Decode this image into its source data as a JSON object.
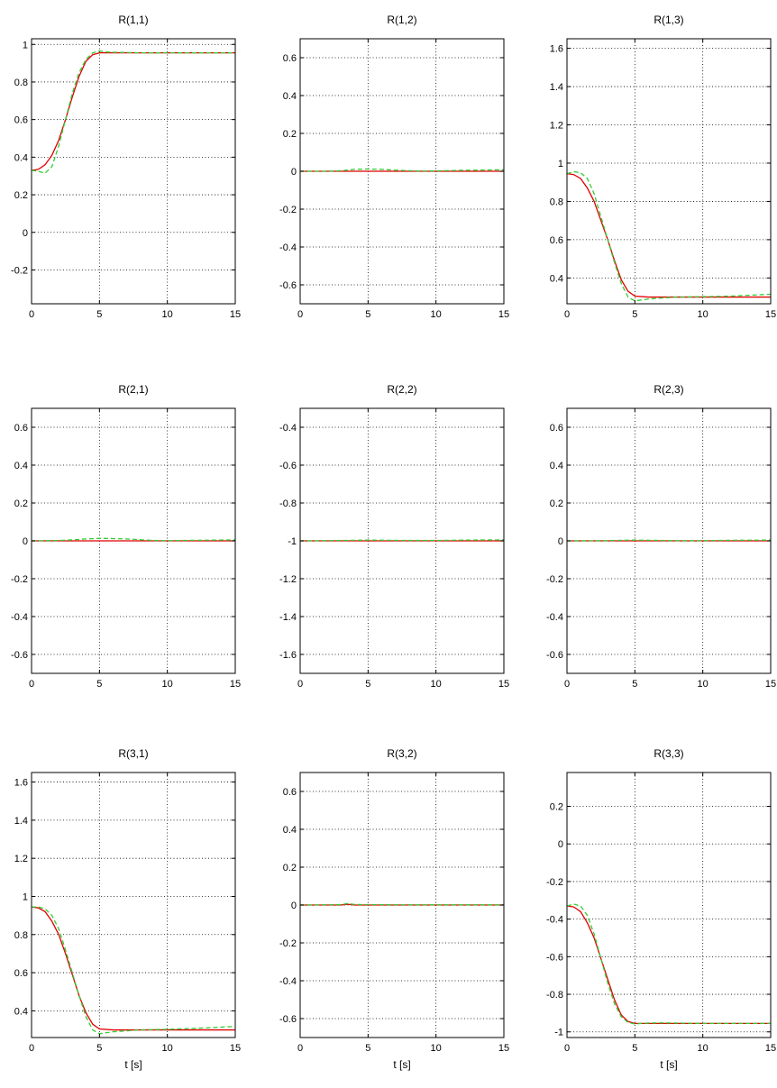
{
  "chart_data": [
    {
      "type": "line",
      "title": "R(1,1)",
      "xlabel": "",
      "xlim": [
        0,
        15
      ],
      "ylim": [
        -0.38,
        1.03
      ],
      "xticks": [
        0,
        5,
        10,
        15
      ],
      "xtick_labels": [
        "0",
        "5",
        "10",
        "15"
      ],
      "yticks": [
        -0.2,
        0,
        0.2,
        0.4,
        0.6,
        0.8,
        1
      ],
      "ytick_labels": [
        "-0.2",
        "0",
        "0.2",
        "0.4",
        "0.6",
        "0.8",
        "1"
      ],
      "grid": true,
      "series": [
        {
          "color": "#e00000",
          "style": "solid",
          "x": [
            0,
            0.5,
            1,
            1.5,
            2,
            2.5,
            3,
            3.5,
            4,
            4.5,
            5,
            6,
            8,
            10,
            15
          ],
          "y": [
            0.33,
            0.335,
            0.36,
            0.41,
            0.49,
            0.6,
            0.72,
            0.83,
            0.91,
            0.945,
            0.955,
            0.955,
            0.955,
            0.955,
            0.955
          ]
        },
        {
          "color": "#33cc33",
          "style": "dashed",
          "x": [
            0,
            0.5,
            1,
            1.5,
            2,
            2.5,
            3,
            3.5,
            4,
            4.5,
            5,
            5.5,
            6,
            7,
            8,
            10,
            12,
            15
          ],
          "y": [
            0.33,
            0.325,
            0.315,
            0.35,
            0.46,
            0.6,
            0.74,
            0.85,
            0.92,
            0.955,
            0.965,
            0.96,
            0.958,
            0.957,
            0.955,
            0.955,
            0.955,
            0.955
          ]
        }
      ]
    },
    {
      "type": "line",
      "title": "R(1,2)",
      "xlabel": "",
      "xlim": [
        0,
        15
      ],
      "ylim": [
        -0.7,
        0.7
      ],
      "xticks": [
        0,
        5,
        10,
        15
      ],
      "xtick_labels": [
        "0",
        "5",
        "10",
        "15"
      ],
      "yticks": [
        -0.6,
        -0.4,
        -0.2,
        0,
        0.2,
        0.4,
        0.6
      ],
      "ytick_labels": [
        "-0.6",
        "-0.4",
        "-0.2",
        "0",
        "0.2",
        "0.4",
        "0.6"
      ],
      "grid": true,
      "series": [
        {
          "color": "#e00000",
          "style": "solid",
          "x": [
            0,
            15
          ],
          "y": [
            0,
            0
          ]
        },
        {
          "color": "#33cc33",
          "style": "dashed",
          "x": [
            0,
            2,
            3,
            4,
            5,
            6,
            7,
            8,
            9,
            10,
            12,
            15
          ],
          "y": [
            0,
            0,
            0.003,
            0.01,
            0.012,
            0.01,
            0.006,
            0.003,
            0.001,
            0.002,
            0.005,
            0.008
          ]
        }
      ]
    },
    {
      "type": "line",
      "title": "R(1,3)",
      "xlabel": "",
      "xlim": [
        0,
        15
      ],
      "ylim": [
        0.265,
        1.65
      ],
      "xticks": [
        0,
        5,
        10,
        15
      ],
      "xtick_labels": [
        "0",
        "5",
        "10",
        "15"
      ],
      "yticks": [
        0.4,
        0.6,
        0.8,
        1,
        1.2,
        1.4,
        1.6
      ],
      "ytick_labels": [
        "0.4",
        "0.6",
        "0.8",
        "1",
        "1.2",
        "1.4",
        "1.6"
      ],
      "grid": true,
      "series": [
        {
          "color": "#e00000",
          "style": "solid",
          "x": [
            0,
            0.5,
            1,
            1.5,
            2,
            2.5,
            3,
            3.5,
            4,
            4.5,
            5,
            6,
            8,
            10,
            15
          ],
          "y": [
            0.945,
            0.94,
            0.92,
            0.87,
            0.8,
            0.7,
            0.6,
            0.49,
            0.39,
            0.33,
            0.305,
            0.3,
            0.3,
            0.3,
            0.3
          ]
        },
        {
          "color": "#33cc33",
          "style": "dashed",
          "x": [
            0,
            0.5,
            1,
            1.5,
            2,
            2.5,
            3,
            3.5,
            4,
            4.5,
            5,
            5.5,
            6,
            7,
            8,
            10,
            12,
            15
          ],
          "y": [
            0.945,
            0.955,
            0.95,
            0.92,
            0.84,
            0.72,
            0.6,
            0.48,
            0.37,
            0.3,
            0.28,
            0.285,
            0.29,
            0.295,
            0.3,
            0.302,
            0.305,
            0.315
          ]
        }
      ]
    },
    {
      "type": "line",
      "title": "R(2,1)",
      "xlabel": "",
      "xlim": [
        0,
        15
      ],
      "ylim": [
        -0.7,
        0.7
      ],
      "xticks": [
        0,
        5,
        10,
        15
      ],
      "xtick_labels": [
        "0",
        "5",
        "10",
        "15"
      ],
      "yticks": [
        -0.6,
        -0.4,
        -0.2,
        0,
        0.2,
        0.4,
        0.6
      ],
      "ytick_labels": [
        "-0.6",
        "-0.4",
        "-0.2",
        "0",
        "0.2",
        "0.4",
        "0.6"
      ],
      "grid": true,
      "series": [
        {
          "color": "#e00000",
          "style": "solid",
          "x": [
            0,
            15
          ],
          "y": [
            0,
            0
          ]
        },
        {
          "color": "#33cc33",
          "style": "dashed",
          "x": [
            0,
            2,
            3,
            4,
            5,
            6,
            7,
            8,
            9,
            10,
            12,
            15
          ],
          "y": [
            0,
            0.002,
            0.005,
            0.01,
            0.013,
            0.012,
            0.01,
            0.006,
            0.002,
            0.001,
            0.003,
            0.005
          ]
        }
      ]
    },
    {
      "type": "line",
      "title": "R(2,2)",
      "xlabel": "",
      "xlim": [
        0,
        15
      ],
      "ylim": [
        -1.7,
        -0.3
      ],
      "xticks": [
        0,
        5,
        10,
        15
      ],
      "xtick_labels": [
        "0",
        "5",
        "10",
        "15"
      ],
      "yticks": [
        -1.6,
        -1.4,
        -1.2,
        -1,
        -0.8,
        -0.6,
        -0.4
      ],
      "ytick_labels": [
        "-1.6",
        "-1.4",
        "-1.2",
        "-1",
        "-0.8",
        "-0.6",
        "-0.4"
      ],
      "grid": true,
      "series": [
        {
          "color": "#e00000",
          "style": "solid",
          "x": [
            0,
            15
          ],
          "y": [
            -1,
            -1
          ]
        },
        {
          "color": "#33cc33",
          "style": "dashed",
          "x": [
            0,
            3,
            5,
            8,
            10,
            12,
            15
          ],
          "y": [
            -1,
            -0.998,
            -0.996,
            -0.998,
            -0.998,
            -0.996,
            -0.995
          ]
        }
      ]
    },
    {
      "type": "line",
      "title": "R(2,3)",
      "xlabel": "",
      "xlim": [
        0,
        15
      ],
      "ylim": [
        -0.7,
        0.7
      ],
      "xticks": [
        0,
        5,
        10,
        15
      ],
      "xtick_labels": [
        "0",
        "5",
        "10",
        "15"
      ],
      "yticks": [
        -0.6,
        -0.4,
        -0.2,
        0,
        0.2,
        0.4,
        0.6
      ],
      "ytick_labels": [
        "-0.6",
        "-0.4",
        "-0.2",
        "0",
        "0.2",
        "0.4",
        "0.6"
      ],
      "grid": true,
      "series": [
        {
          "color": "#e00000",
          "style": "solid",
          "x": [
            0,
            15
          ],
          "y": [
            0,
            0
          ]
        },
        {
          "color": "#33cc33",
          "style": "dashed",
          "x": [
            0,
            3,
            4,
            5,
            6,
            7,
            8,
            10,
            12,
            15
          ],
          "y": [
            0,
            0.001,
            0.003,
            0.004,
            0.003,
            0.002,
            0.001,
            0.001,
            0.003,
            0.004
          ]
        }
      ]
    },
    {
      "type": "line",
      "title": "R(3,1)",
      "xlabel": "t [s]",
      "xlim": [
        0,
        15
      ],
      "ylim": [
        0.26,
        1.65
      ],
      "xticks": [
        0,
        5,
        10,
        15
      ],
      "xtick_labels": [
        "0",
        "5",
        "10",
        "15"
      ],
      "yticks": [
        0.4,
        0.6,
        0.8,
        1,
        1.2,
        1.4,
        1.6
      ],
      "ytick_labels": [
        "0.4",
        "0.6",
        "0.8",
        "1",
        "1.2",
        "1.4",
        "1.6"
      ],
      "grid": true,
      "series": [
        {
          "color": "#e00000",
          "style": "solid",
          "x": [
            0,
            0.5,
            1,
            1.5,
            2,
            2.5,
            3,
            3.5,
            4,
            4.5,
            5,
            6,
            8,
            10,
            15
          ],
          "y": [
            0.945,
            0.94,
            0.92,
            0.87,
            0.8,
            0.7,
            0.59,
            0.48,
            0.39,
            0.33,
            0.305,
            0.3,
            0.3,
            0.3,
            0.3
          ]
        },
        {
          "color": "#33cc33",
          "style": "dashed",
          "x": [
            0,
            0.5,
            1,
            1.5,
            2,
            2.5,
            3,
            3.5,
            4,
            4.5,
            5,
            5.5,
            6,
            7,
            8,
            10,
            12,
            15
          ],
          "y": [
            0.945,
            0.945,
            0.935,
            0.9,
            0.83,
            0.72,
            0.6,
            0.48,
            0.37,
            0.3,
            0.28,
            0.285,
            0.29,
            0.295,
            0.3,
            0.303,
            0.308,
            0.318
          ]
        }
      ]
    },
    {
      "type": "line",
      "title": "R(3,2)",
      "xlabel": "t [s]",
      "xlim": [
        0,
        15
      ],
      "ylim": [
        -0.7,
        0.7
      ],
      "xticks": [
        0,
        5,
        10,
        15
      ],
      "xtick_labels": [
        "0",
        "5",
        "10",
        "15"
      ],
      "yticks": [
        -0.6,
        -0.4,
        -0.2,
        0,
        0.2,
        0.4,
        0.6
      ],
      "ytick_labels": [
        "-0.6",
        "-0.4",
        "-0.2",
        "0",
        "0.2",
        "0.4",
        "0.6"
      ],
      "grid": true,
      "series": [
        {
          "color": "#e00000",
          "style": "solid",
          "x": [
            0,
            3,
            3.5,
            4,
            15
          ],
          "y": [
            0,
            0,
            0.004,
            0,
            0
          ]
        },
        {
          "color": "#33cc33",
          "style": "dashed",
          "x": [
            0,
            3,
            3.5,
            4,
            5,
            8,
            10,
            15
          ],
          "y": [
            0,
            0.002,
            0.008,
            0.003,
            0.002,
            0.001,
            0.001,
            0.001
          ]
        }
      ]
    },
    {
      "type": "line",
      "title": "R(3,3)",
      "xlabel": "t [s]",
      "xlim": [
        0,
        15
      ],
      "ylim": [
        -1.03,
        0.38
      ],
      "xticks": [
        0,
        5,
        10,
        15
      ],
      "xtick_labels": [
        "0",
        "5",
        "10",
        "15"
      ],
      "yticks": [
        -1,
        -0.8,
        -0.6,
        -0.4,
        -0.2,
        0,
        0.2
      ],
      "ytick_labels": [
        "-1",
        "-0.8",
        "-0.6",
        "-0.4",
        "-0.2",
        "0",
        "0.2"
      ],
      "grid": true,
      "series": [
        {
          "color": "#e00000",
          "style": "solid",
          "x": [
            0,
            0.5,
            1,
            1.5,
            2,
            2.5,
            3,
            3.5,
            4,
            4.5,
            5,
            6,
            8,
            10,
            15
          ],
          "y": [
            -0.33,
            -0.335,
            -0.36,
            -0.42,
            -0.5,
            -0.61,
            -0.72,
            -0.83,
            -0.91,
            -0.945,
            -0.955,
            -0.955,
            -0.955,
            -0.955,
            -0.955
          ]
        },
        {
          "color": "#33cc33",
          "style": "dashed",
          "x": [
            0,
            0.5,
            1,
            1.5,
            2,
            2.5,
            3,
            3.5,
            4,
            4.5,
            5,
            5.5,
            6,
            7,
            8,
            10,
            12,
            15
          ],
          "y": [
            -0.33,
            -0.32,
            -0.33,
            -0.38,
            -0.48,
            -0.61,
            -0.74,
            -0.85,
            -0.92,
            -0.95,
            -0.958,
            -0.955,
            -0.953,
            -0.952,
            -0.953,
            -0.955,
            -0.955,
            -0.955
          ]
        }
      ]
    }
  ]
}
